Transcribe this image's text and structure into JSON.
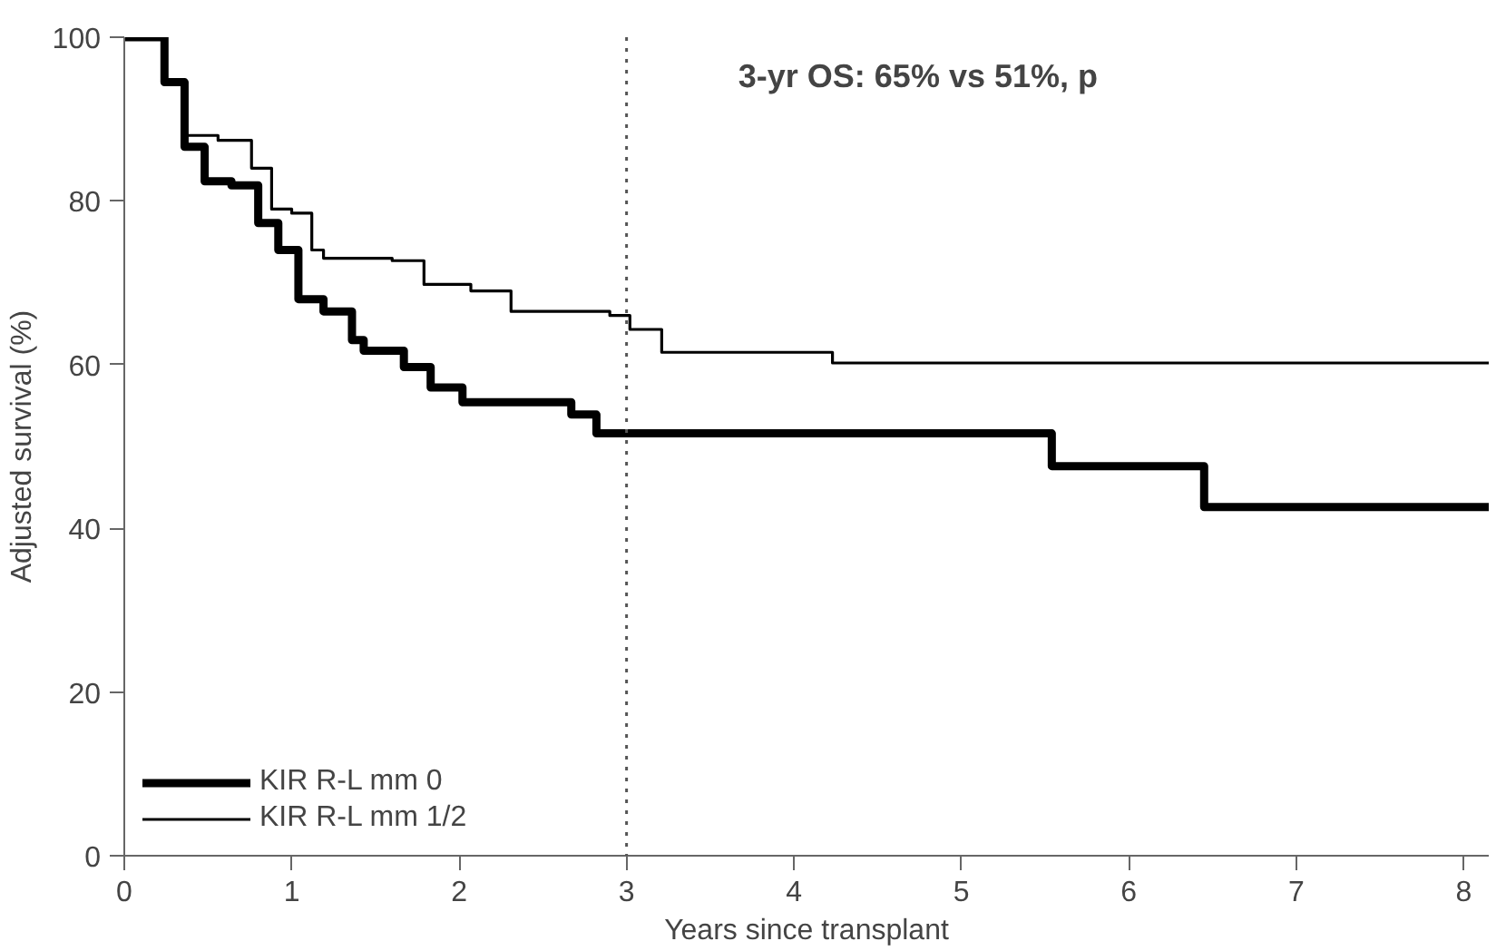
{
  "chart_data": {
    "type": "step",
    "xlabel": "Years since transplant",
    "ylabel": "Adjusted survival (%)",
    "xlim": [
      0,
      8.15
    ],
    "ylim": [
      0,
      100
    ],
    "xticks": [
      0,
      1,
      2,
      3,
      4,
      5,
      6,
      7,
      8
    ],
    "yticks": [
      0,
      20,
      40,
      60,
      80,
      100
    ],
    "grid": false,
    "legend": "bottom left",
    "marker": "none",
    "line_style": "solid",
    "annotations": [
      "3-yr OS: 65% vs 51%, p"
    ],
    "ref_lines": [
      {
        "axis": "x",
        "value": 3,
        "line_style": "dotted",
        "color": "#555555"
      }
    ],
    "series": [
      {
        "name": "KIR R-L mm 0",
        "color": "#000000",
        "x": [
          0,
          0.24,
          0.36,
          0.48,
          0.64,
          0.8,
          0.92,
          1.04,
          1.19,
          1.36,
          1.43,
          1.67,
          1.83,
          2.02,
          2.67,
          2.82,
          5.54,
          6.45,
          8.15
        ],
        "values": [
          100,
          94.5,
          86.6,
          82.4,
          81.9,
          77.3,
          74,
          68,
          66.5,
          63,
          61.7,
          59.7,
          57.2,
          55.4,
          53.9,
          51.6,
          47.6,
          42.6,
          42.6
        ]
      },
      {
        "name": "KIR R-L mm 1/2",
        "color": "#000000",
        "x": [
          0,
          0.24,
          0.36,
          0.56,
          0.76,
          0.88,
          1.0,
          1.12,
          1.19,
          1.6,
          1.79,
          2.07,
          2.31,
          2.9,
          3.02,
          3.21,
          4.23,
          8.15
        ],
        "values": [
          100,
          94.5,
          88,
          87.4,
          84,
          79,
          78.5,
          74,
          73,
          72.7,
          69.8,
          69,
          66.5,
          66,
          64.3,
          61.5,
          60.2,
          60.2
        ]
      }
    ]
  }
}
